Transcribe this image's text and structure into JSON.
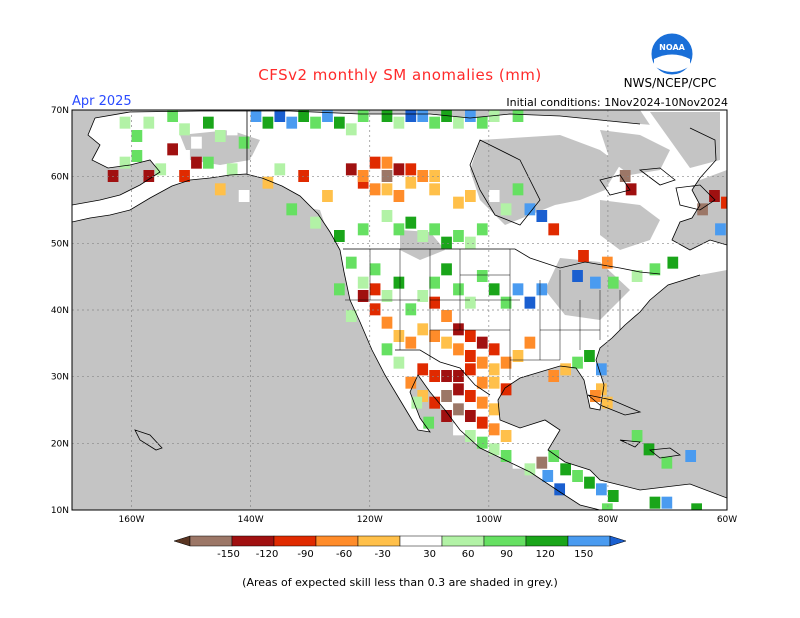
{
  "header": {
    "title": "CFSv2 monthly SM anomalies (mm)",
    "month": "Apr 2025",
    "initial_conditions": "Initial conditions: 1Nov2024-10Nov2024",
    "agency": "NWS/NCEP/CPC",
    "logo_text": "NOAA"
  },
  "axes": {
    "lat_labels": [
      "70N",
      "60N",
      "50N",
      "40N",
      "30N",
      "20N",
      "10N"
    ],
    "lon_labels": [
      "160W",
      "140W",
      "120W",
      "100W",
      "80W",
      "60W"
    ],
    "lat_values": [
      70,
      60,
      50,
      40,
      30,
      20,
      10
    ],
    "lon_values": [
      -160,
      -140,
      -120,
      -100,
      -80,
      -60
    ],
    "lon_range": [
      -170,
      -60
    ],
    "lat_range": [
      10,
      70
    ]
  },
  "colorbar": {
    "labels": [
      "-150",
      "-120",
      "-90",
      "-60",
      "-30",
      "30",
      "60",
      "90",
      "120",
      "150"
    ],
    "colors": [
      "#5a3522",
      "#9c7767",
      "#a01010",
      "#e02a00",
      "#ff8c2a",
      "#ffc04a",
      "#ffffff",
      "#b2f2a6",
      "#66e062",
      "#1aa51a",
      "#4a9bf0",
      "#1a5fd0"
    ],
    "grey_color": "#c4c4c4"
  },
  "footnote": "(Areas of expected skill less than 0.3 are shaded in grey.)"
}
